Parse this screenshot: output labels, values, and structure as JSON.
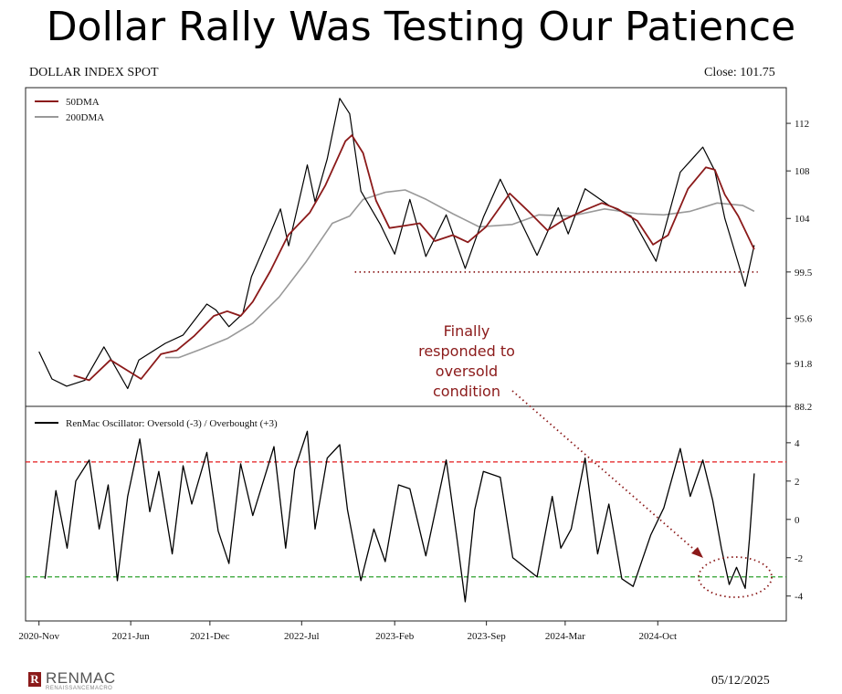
{
  "slide": {
    "title": "Dollar Rally Was Testing Our Patience"
  },
  "chart_data": [
    {
      "type": "line",
      "title": "DOLLAR INDEX SPOT",
      "close_label": "Close: 101.75",
      "y_ticks": [
        88.2,
        91.8,
        95.6,
        99.5,
        104,
        108,
        112
      ],
      "ylim": [
        88.2,
        115
      ],
      "legend": [
        "50DMA",
        "200DMA"
      ],
      "legend_position": "top-left",
      "x_tick_labels": [
        "2020-Nov",
        "2021-Jun",
        "2021-Dec",
        "2022-Jul",
        "2023-Feb",
        "2023-Sep",
        "2024-Mar",
        "2024-Oct"
      ],
      "x_tick_dates": [
        "2020-11-01",
        "2021-06-01",
        "2021-12-01",
        "2022-07-01",
        "2023-02-01",
        "2023-09-01",
        "2024-03-01",
        "2024-10-01"
      ],
      "series": [
        {
          "name": "DOLLAR INDEX SPOT",
          "color": "#000000",
          "points": [
            [
              "2020-11-01",
              92.8
            ],
            [
              "2020-12-01",
              90.5
            ],
            [
              "2021-01-04",
              89.9
            ],
            [
              "2021-02-15",
              90.4
            ],
            [
              "2021-03-31",
              93.2
            ],
            [
              "2021-05-25",
              89.7
            ],
            [
              "2021-06-20",
              92.1
            ],
            [
              "2021-08-20",
              93.5
            ],
            [
              "2021-09-30",
              94.2
            ],
            [
              "2021-11-24",
              96.8
            ],
            [
              "2021-12-15",
              96.3
            ],
            [
              "2022-01-14",
              94.9
            ],
            [
              "2022-02-15",
              96.0
            ],
            [
              "2022-03-07",
              99.1
            ],
            [
              "2022-04-28",
              103.5
            ],
            [
              "2022-05-13",
              104.8
            ],
            [
              "2022-06-01",
              101.7
            ],
            [
              "2022-07-14",
              108.5
            ],
            [
              "2022-08-01",
              105.4
            ],
            [
              "2022-08-29",
              109.0
            ],
            [
              "2022-09-27",
              114.1
            ],
            [
              "2022-10-20",
              112.8
            ],
            [
              "2022-11-15",
              106.3
            ],
            [
              "2022-12-30",
              103.5
            ],
            [
              "2023-02-01",
              101.0
            ],
            [
              "2023-03-08",
              105.6
            ],
            [
              "2023-04-14",
              100.8
            ],
            [
              "2023-05-31",
              104.3
            ],
            [
              "2023-07-14",
              99.8
            ],
            [
              "2023-08-25",
              104.1
            ],
            [
              "2023-10-03",
              107.3
            ],
            [
              "2023-12-27",
              100.9
            ],
            [
              "2024-02-14",
              104.9
            ],
            [
              "2024-03-08",
              102.7
            ],
            [
              "2024-04-16",
              106.5
            ],
            [
              "2024-06-10",
              105.1
            ],
            [
              "2024-07-31",
              104.2
            ],
            [
              "2024-09-27",
              100.4
            ],
            [
              "2024-11-22",
              107.9
            ],
            [
              "2025-01-13",
              110.0
            ],
            [
              "2025-02-10",
              108.0
            ],
            [
              "2025-03-05",
              104.0
            ],
            [
              "2025-04-21",
              98.3
            ],
            [
              "2025-05-12",
              101.75
            ]
          ]
        },
        {
          "name": "50DMA",
          "color": "#8b1a1a",
          "points": [
            [
              "2021-01-20",
              90.8
            ],
            [
              "2021-02-25",
              90.4
            ],
            [
              "2021-04-15",
              92.1
            ],
            [
              "2021-05-25",
              91.2
            ],
            [
              "2021-06-25",
              90.5
            ],
            [
              "2021-08-10",
              92.6
            ],
            [
              "2021-09-15",
              92.9
            ],
            [
              "2021-10-25",
              94.1
            ],
            [
              "2021-12-10",
              95.8
            ],
            [
              "2022-01-10",
              96.2
            ],
            [
              "2022-02-10",
              95.8
            ],
            [
              "2022-03-10",
              97.0
            ],
            [
              "2022-04-20",
              99.6
            ],
            [
              "2022-05-31",
              102.6
            ],
            [
              "2022-07-20",
              104.5
            ],
            [
              "2022-08-25",
              106.8
            ],
            [
              "2022-10-10",
              110.5
            ],
            [
              "2022-10-25",
              111.0
            ],
            [
              "2022-11-20",
              109.5
            ],
            [
              "2022-12-20",
              105.5
            ],
            [
              "2023-01-20",
              103.2
            ],
            [
              "2023-02-25",
              103.4
            ],
            [
              "2023-03-31",
              103.6
            ],
            [
              "2023-05-05",
              102.1
            ],
            [
              "2023-06-15",
              102.6
            ],
            [
              "2023-07-20",
              102.0
            ],
            [
              "2023-08-31",
              103.3
            ],
            [
              "2023-10-25",
              106.1
            ],
            [
              "2023-12-10",
              104.5
            ],
            [
              "2024-01-20",
              103.0
            ],
            [
              "2024-02-28",
              103.9
            ],
            [
              "2024-04-15",
              104.7
            ],
            [
              "2024-05-25",
              105.3
            ],
            [
              "2024-06-30",
              104.8
            ],
            [
              "2024-08-15",
              103.8
            ],
            [
              "2024-09-20",
              101.8
            ],
            [
              "2024-10-25",
              102.6
            ],
            [
              "2024-12-10",
              106.5
            ],
            [
              "2025-01-20",
              108.3
            ],
            [
              "2025-02-10",
              108.1
            ],
            [
              "2025-03-05",
              106.0
            ],
            [
              "2025-04-05",
              104.2
            ],
            [
              "2025-05-12",
              101.4
            ]
          ]
        },
        {
          "name": "200DMA",
          "color": "#999999",
          "points": [
            [
              "2021-08-20",
              92.3
            ],
            [
              "2021-09-20",
              92.3
            ],
            [
              "2021-11-10",
              93.0
            ],
            [
              "2022-01-10",
              93.9
            ],
            [
              "2022-03-10",
              95.2
            ],
            [
              "2022-05-10",
              97.4
            ],
            [
              "2022-07-10",
              100.3
            ],
            [
              "2022-09-10",
              103.6
            ],
            [
              "2022-10-20",
              104.2
            ],
            [
              "2022-11-20",
              105.6
            ],
            [
              "2023-01-10",
              106.2
            ],
            [
              "2023-02-25",
              106.4
            ],
            [
              "2023-04-15",
              105.6
            ],
            [
              "2023-06-15",
              104.4
            ],
            [
              "2023-08-15",
              103.3
            ],
            [
              "2023-10-31",
              103.5
            ],
            [
              "2023-12-31",
              104.3
            ],
            [
              "2024-03-15",
              104.2
            ],
            [
              "2024-05-31",
              104.8
            ],
            [
              "2024-08-15",
              104.4
            ],
            [
              "2024-10-15",
              104.3
            ],
            [
              "2024-12-15",
              104.6
            ],
            [
              "2025-02-15",
              105.3
            ],
            [
              "2025-04-15",
              105.1
            ],
            [
              "2025-05-12",
              104.6
            ]
          ]
        }
      ],
      "support_line": {
        "value": 99.5,
        "from": "2022-11-01",
        "to": "2025-05-20",
        "color": "#8b1a1a"
      }
    },
    {
      "type": "line",
      "legend": [
        "RenMac Oscillator: Oversold (-3) / Overbought (+3)"
      ],
      "legend_position": "top-left",
      "y_ticks": [
        -4,
        -2,
        0,
        2,
        4
      ],
      "ylim": [
        -5.3,
        5.9
      ],
      "thresholds": [
        {
          "value": 3,
          "color": "#e41a1c"
        },
        {
          "value": -3,
          "color": "#2ca02c"
        }
      ],
      "series": [
        {
          "name": "RenMac Oscillator: Oversold (-3) / Overbought (+3)",
          "color": "#000000",
          "points": [
            [
              "2020-11-15",
              -3.1
            ],
            [
              "2020-12-10",
              1.5
            ],
            [
              "2021-01-05",
              -1.5
            ],
            [
              "2021-01-25",
              2.0
            ],
            [
              "2021-02-25",
              3.1
            ],
            [
              "2021-03-20",
              -0.5
            ],
            [
              "2021-04-10",
              1.8
            ],
            [
              "2021-05-01",
              -3.2
            ],
            [
              "2021-05-25",
              1.2
            ],
            [
              "2021-06-22",
              4.2
            ],
            [
              "2021-07-15",
              0.4
            ],
            [
              "2021-08-05",
              2.5
            ],
            [
              "2021-09-05",
              -1.8
            ],
            [
              "2021-09-30",
              2.8
            ],
            [
              "2021-10-20",
              0.8
            ],
            [
              "2021-11-24",
              3.5
            ],
            [
              "2021-12-20",
              -0.6
            ],
            [
              "2022-01-14",
              -2.3
            ],
            [
              "2022-02-10",
              2.9
            ],
            [
              "2022-03-10",
              0.2
            ],
            [
              "2022-04-28",
              3.8
            ],
            [
              "2022-05-25",
              -1.5
            ],
            [
              "2022-06-15",
              2.6
            ],
            [
              "2022-07-14",
              4.6
            ],
            [
              "2022-08-01",
              -0.5
            ],
            [
              "2022-08-29",
              3.2
            ],
            [
              "2022-09-27",
              3.9
            ],
            [
              "2022-10-15",
              0.5
            ],
            [
              "2022-11-15",
              -3.2
            ],
            [
              "2022-12-15",
              -0.5
            ],
            [
              "2023-01-10",
              -2.2
            ],
            [
              "2023-02-10",
              1.8
            ],
            [
              "2023-03-08",
              1.6
            ],
            [
              "2023-04-14",
              -1.9
            ],
            [
              "2023-05-31",
              3.1
            ],
            [
              "2023-06-25",
              -1.0
            ],
            [
              "2023-07-14",
              -4.3
            ],
            [
              "2023-08-05",
              0.5
            ],
            [
              "2023-08-25",
              2.5
            ],
            [
              "2023-10-03",
              2.2
            ],
            [
              "2023-11-01",
              -2.0
            ],
            [
              "2023-12-27",
              -3.0
            ],
            [
              "2024-01-31",
              1.2
            ],
            [
              "2024-02-20",
              -1.5
            ],
            [
              "2024-03-15",
              -0.5
            ],
            [
              "2024-04-16",
              3.2
            ],
            [
              "2024-05-15",
              -1.8
            ],
            [
              "2024-06-10",
              0.8
            ],
            [
              "2024-07-10",
              -3.1
            ],
            [
              "2024-08-05",
              -3.5
            ],
            [
              "2024-09-15",
              -0.8
            ],
            [
              "2024-10-15",
              0.6
            ],
            [
              "2024-11-22",
              3.7
            ],
            [
              "2024-12-15",
              1.2
            ],
            [
              "2025-01-13",
              3.1
            ],
            [
              "2025-02-05",
              1.0
            ],
            [
              "2025-02-25",
              -1.5
            ],
            [
              "2025-03-15",
              -3.4
            ],
            [
              "2025-04-01",
              -2.5
            ],
            [
              "2025-04-21",
              -3.6
            ],
            [
              "2025-05-01",
              -1.0
            ],
            [
              "2025-05-12",
              2.4
            ]
          ]
        }
      ]
    }
  ],
  "annotation": {
    "lines": [
      "Finally",
      "responded to",
      "oversold",
      "condition"
    ],
    "color": "#8b1a1a"
  },
  "footer": {
    "brand": "RENMAC",
    "brand_sub": "RENAISSANCEMACRO",
    "logo_letter": "R",
    "date": "05/12/2025"
  }
}
